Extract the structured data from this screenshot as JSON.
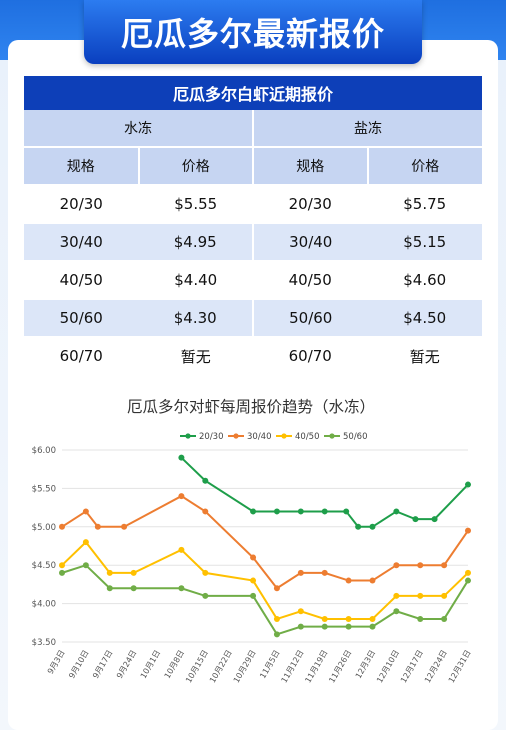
{
  "header": {
    "title": "厄瓜多尔最新报价"
  },
  "table": {
    "title": "厄瓜多尔白虾近期报价",
    "groups": [
      "水冻",
      "盐冻"
    ],
    "columns": [
      "规格",
      "价格",
      "规格",
      "价格"
    ],
    "rows": [
      [
        "20/30",
        "$5.55",
        "20/30",
        "$5.75"
      ],
      [
        "30/40",
        "$4.95",
        "30/40",
        "$5.15"
      ],
      [
        "40/50",
        "$4.40",
        "40/50",
        "$4.60"
      ],
      [
        "50/60",
        "$4.30",
        "50/60",
        "$4.50"
      ],
      [
        "60/70",
        "暂无",
        "60/70",
        "暂无"
      ]
    ]
  },
  "chart_data": {
    "type": "line",
    "title": "厄瓜多尔对虾每周报价趋势（水冻）",
    "categories": [
      "9月3日",
      "9月10日",
      "9月17日",
      "9月24日",
      "10月1日",
      "10月8日",
      "10月15日",
      "10月22日",
      "10月29日",
      "11月5日",
      "11月12日",
      "11月19日",
      "11月26日",
      "12月3日",
      "12月10日",
      "12月17日",
      "12月24日",
      "12月31日"
    ],
    "x_positions": [
      0,
      1,
      2,
      3,
      4,
      5,
      6,
      7,
      8,
      9,
      10,
      11,
      12,
      13,
      14,
      15,
      16,
      17
    ],
    "ylim": [
      3.5,
      6.0
    ],
    "yticks": [
      "$6.00",
      "$5.50",
      "$5.00",
      "$4.50",
      "$4.00",
      "$3.50"
    ],
    "ytick_values": [
      6.0,
      5.5,
      5.0,
      4.5,
      4.0,
      3.5
    ],
    "grid": true,
    "legend_position": "top",
    "series": [
      {
        "name": "20/30",
        "color": "#1e9e4a",
        "x": [
          5,
          6,
          8,
          9,
          10,
          11,
          11.9,
          12.4,
          13,
          14,
          14.8,
          15.6,
          17
        ],
        "values": [
          5.9,
          5.6,
          5.2,
          5.2,
          5.2,
          5.2,
          5.2,
          5.0,
          5.0,
          5.2,
          5.1,
          5.1,
          5.55
        ]
      },
      {
        "name": "30/40",
        "color": "#ed7d31",
        "x": [
          0,
          1,
          1.5,
          2.6,
          5,
          6,
          8,
          9,
          10,
          11,
          12,
          13,
          14,
          15,
          16,
          17
        ],
        "values": [
          5.0,
          5.2,
          5.0,
          5.0,
          5.4,
          5.2,
          4.6,
          4.2,
          4.4,
          4.4,
          4.3,
          4.3,
          4.5,
          4.5,
          4.5,
          4.95
        ]
      },
      {
        "name": "40/50",
        "color": "#ffc000",
        "x": [
          0,
          1,
          2,
          3,
          5,
          6,
          8,
          9,
          10,
          11,
          12,
          13,
          14,
          15,
          16,
          17
        ],
        "values": [
          4.5,
          4.8,
          4.4,
          4.4,
          4.7,
          4.4,
          4.3,
          3.8,
          3.9,
          3.8,
          3.8,
          3.8,
          4.1,
          4.1,
          4.1,
          4.4
        ]
      },
      {
        "name": "50/60",
        "color": "#70ad47",
        "x": [
          0,
          1,
          2,
          3,
          5,
          6,
          8,
          9,
          10,
          11,
          12,
          13,
          14,
          15,
          16,
          17
        ],
        "values": [
          4.4,
          4.5,
          4.2,
          4.2,
          4.2,
          4.1,
          4.1,
          3.6,
          3.7,
          3.7,
          3.7,
          3.7,
          3.9,
          3.8,
          3.8,
          4.3
        ]
      }
    ]
  }
}
